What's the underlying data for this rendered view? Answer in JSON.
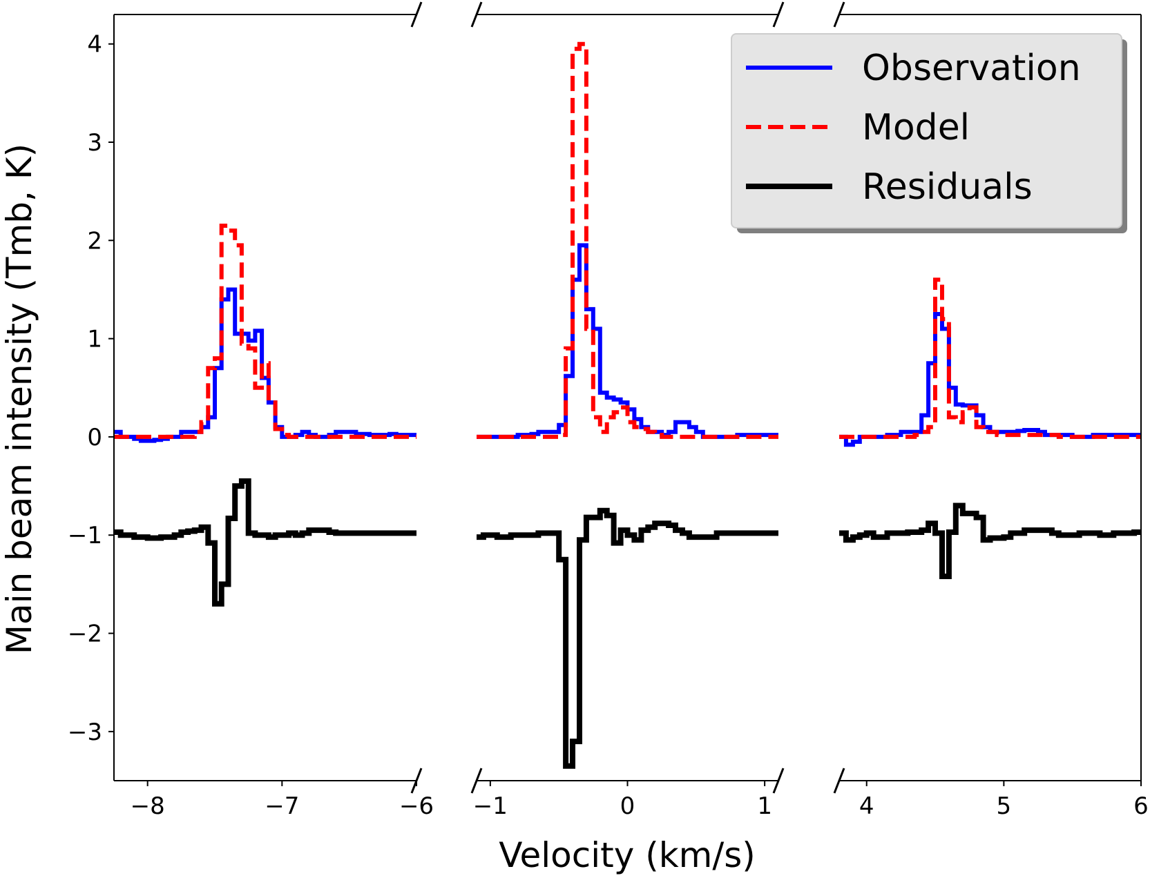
{
  "chart_data": {
    "type": "line",
    "title": "",
    "xlabel": "Velocity (km/s)",
    "ylabel": "Main beam intensity (Tmb, K)",
    "ylim": [
      -3.5,
      4.3
    ],
    "y_ticks": [
      4,
      3,
      2,
      1,
      0,
      -1,
      -2,
      -3
    ],
    "y_tick_labels": [
      "4",
      "3",
      "2",
      "1",
      "0",
      "−1",
      "−2",
      "−3"
    ],
    "panels": [
      {
        "xlim": [
          -8.25,
          -6.0
        ],
        "ticks": [
          -8,
          -7,
          -6
        ],
        "tick_labels": [
          "−8",
          "−7",
          "−6"
        ],
        "x": [
          -8.25,
          -8.2,
          -8.15,
          -8.1,
          -8.05,
          -8.0,
          -7.95,
          -7.9,
          -7.85,
          -7.8,
          -7.75,
          -7.7,
          -7.65,
          -7.6,
          -7.55,
          -7.5,
          -7.45,
          -7.4,
          -7.35,
          -7.3,
          -7.25,
          -7.2,
          -7.15,
          -7.1,
          -7.05,
          -7.0,
          -6.95,
          -6.9,
          -6.85,
          -6.8,
          -6.75,
          -6.7,
          -6.65,
          -6.6,
          -6.55,
          -6.5,
          -6.45,
          -6.4,
          -6.35,
          -6.3,
          -6.25,
          -6.2,
          -6.15,
          -6.1,
          -6.05
        ],
        "series": [
          {
            "name": "Observation",
            "color": "#0000ff",
            "values": [
              0.05,
              0.0,
              0.0,
              -0.02,
              -0.04,
              -0.04,
              -0.03,
              -0.02,
              0.0,
              0.0,
              0.05,
              0.05,
              0.05,
              0.1,
              0.2,
              0.7,
              1.4,
              1.5,
              1.05,
              1.05,
              0.98,
              1.08,
              0.6,
              0.35,
              0.1,
              0.0,
              0.0,
              0.02,
              0.05,
              0.02,
              0.0,
              0.0,
              0.02,
              0.05,
              0.05,
              0.05,
              0.03,
              0.03,
              0.02,
              0.02,
              0.02,
              0.03,
              0.02,
              0.02,
              0.02
            ]
          },
          {
            "name": "Model",
            "color": "#ff0000",
            "values": [
              0.0,
              0.0,
              0.0,
              0.0,
              0.0,
              0.0,
              0.0,
              0.0,
              0.0,
              0.0,
              0.0,
              0.0,
              0.05,
              0.15,
              0.7,
              0.8,
              2.15,
              2.1,
              1.95,
              0.95,
              0.9,
              0.5,
              0.75,
              0.35,
              0.08,
              0.02,
              0.0,
              0.0,
              0.0,
              0.0,
              0.0,
              0.0,
              0.0,
              0.0,
              0.0,
              0.0,
              0.0,
              0.0,
              0.0,
              0.0,
              0.0,
              0.0,
              0.0,
              0.0,
              0.0
            ]
          },
          {
            "name": "Residuals",
            "color": "#000000",
            "values": [
              -0.97,
              -1.0,
              -1.0,
              -1.02,
              -1.02,
              -1.03,
              -1.03,
              -1.02,
              -1.02,
              -1.0,
              -0.97,
              -0.96,
              -0.95,
              -0.92,
              -1.08,
              -1.7,
              -1.5,
              -0.83,
              -0.5,
              -0.45,
              -0.98,
              -1.0,
              -1.0,
              -1.02,
              -1.0,
              -1.0,
              -0.98,
              -1.0,
              -0.98,
              -0.95,
              -0.95,
              -0.95,
              -0.97,
              -0.98,
              -0.98,
              -0.98,
              -0.98,
              -0.98,
              -0.98,
              -0.98,
              -0.98,
              -0.98,
              -0.98,
              -0.98,
              -0.98
            ]
          }
        ]
      },
      {
        "xlim": [
          -1.1,
          1.1
        ],
        "ticks": [
          -1,
          0,
          1
        ],
        "tick_labels": [
          "−1",
          "0",
          "1"
        ],
        "x": [
          -1.1,
          -1.05,
          -1.0,
          -0.95,
          -0.9,
          -0.85,
          -0.8,
          -0.75,
          -0.7,
          -0.65,
          -0.6,
          -0.55,
          -0.5,
          -0.45,
          -0.4,
          -0.35,
          -0.3,
          -0.25,
          -0.2,
          -0.15,
          -0.1,
          -0.05,
          0.0,
          0.05,
          0.1,
          0.15,
          0.2,
          0.25,
          0.3,
          0.35,
          0.4,
          0.45,
          0.5,
          0.55,
          0.6,
          0.65,
          0.7,
          0.75,
          0.8,
          0.85,
          0.9,
          0.95,
          1.0,
          1.05
        ],
        "series": [
          {
            "name": "Observation",
            "color": "#0000ff",
            "values": [
              0.0,
              0.0,
              0.0,
              0.0,
              0.0,
              0.0,
              0.02,
              0.02,
              0.03,
              0.05,
              0.05,
              0.05,
              0.12,
              0.62,
              1.6,
              1.95,
              1.3,
              1.1,
              0.45,
              0.4,
              0.38,
              0.35,
              0.28,
              0.18,
              0.1,
              0.05,
              0.05,
              0.02,
              0.05,
              0.15,
              0.15,
              0.1,
              0.05,
              0.0,
              0.0,
              0.0,
              0.0,
              0.0,
              0.02,
              0.02,
              0.02,
              0.02,
              0.02,
              0.02
            ]
          },
          {
            "name": "Model",
            "color": "#ff0000",
            "values": [
              0.0,
              0.0,
              0.0,
              0.0,
              0.0,
              0.0,
              0.0,
              0.0,
              0.0,
              0.0,
              0.0,
              0.0,
              0.02,
              0.9,
              3.95,
              4.0,
              1.1,
              0.2,
              0.05,
              0.2,
              0.25,
              0.3,
              0.15,
              0.1,
              0.08,
              0.05,
              0.02,
              0.0,
              0.0,
              0.0,
              0.0,
              0.0,
              0.0,
              0.0,
              0.0,
              0.0,
              0.0,
              0.0,
              0.0,
              0.0,
              0.0,
              0.0,
              0.0,
              0.0
            ]
          },
          {
            "name": "Residuals",
            "color": "#000000",
            "values": [
              -1.02,
              -1.0,
              -1.0,
              -1.02,
              -1.02,
              -1.0,
              -1.0,
              -1.0,
              -1.0,
              -0.98,
              -0.98,
              -0.98,
              -1.25,
              -3.35,
              -3.1,
              -1.05,
              -0.82,
              -0.82,
              -0.75,
              -0.8,
              -1.08,
              -0.95,
              -1.0,
              -1.05,
              -0.95,
              -0.92,
              -0.88,
              -0.88,
              -0.9,
              -0.95,
              -0.98,
              -1.02,
              -1.02,
              -1.02,
              -1.02,
              -0.98,
              -0.98,
              -0.98,
              -0.98,
              -0.98,
              -0.98,
              -0.98,
              -0.98,
              -0.98
            ]
          }
        ]
      },
      {
        "xlim": [
          3.8,
          6.0
        ],
        "ticks": [
          4,
          5,
          6
        ],
        "tick_labels": [
          "4",
          "5",
          "6"
        ],
        "x": [
          3.8,
          3.85,
          3.9,
          3.95,
          4.0,
          4.05,
          4.1,
          4.15,
          4.2,
          4.25,
          4.3,
          4.35,
          4.4,
          4.45,
          4.5,
          4.55,
          4.6,
          4.65,
          4.7,
          4.75,
          4.8,
          4.85,
          4.9,
          4.95,
          5.0,
          5.05,
          5.1,
          5.15,
          5.2,
          5.25,
          5.3,
          5.35,
          5.4,
          5.45,
          5.5,
          5.55,
          5.6,
          5.65,
          5.7,
          5.75,
          5.8,
          5.85,
          5.9,
          5.95
        ],
        "series": [
          {
            "name": "Observation",
            "color": "#0000ff",
            "values": [
              0.0,
              -0.08,
              -0.05,
              0.0,
              0.0,
              0.0,
              0.0,
              0.02,
              0.02,
              0.05,
              0.05,
              0.05,
              0.22,
              0.75,
              1.25,
              1.1,
              0.5,
              0.33,
              0.32,
              0.32,
              0.22,
              0.1,
              0.05,
              0.05,
              0.05,
              0.05,
              0.06,
              0.07,
              0.07,
              0.05,
              0.02,
              0.02,
              0.02,
              0.02,
              0.0,
              0.0,
              0.0,
              0.02,
              0.02,
              0.02,
              0.02,
              0.02,
              0.02,
              0.02
            ]
          },
          {
            "name": "Model",
            "color": "#ff0000",
            "values": [
              0.0,
              0.0,
              0.0,
              0.0,
              0.0,
              0.0,
              0.0,
              0.0,
              0.0,
              0.0,
              0.0,
              0.02,
              0.05,
              0.1,
              1.6,
              1.2,
              0.2,
              0.15,
              0.25,
              0.3,
              0.1,
              0.05,
              0.05,
              0.02,
              0.02,
              0.02,
              0.02,
              0.02,
              0.02,
              0.02,
              0.02,
              0.02,
              0.0,
              0.0,
              0.0,
              0.0,
              0.0,
              0.0,
              0.0,
              0.0,
              0.0,
              0.0,
              0.0,
              0.0
            ]
          },
          {
            "name": "Residuals",
            "color": "#000000",
            "values": [
              -0.98,
              -1.05,
              -1.02,
              -1.0,
              -0.98,
              -1.02,
              -1.02,
              -0.98,
              -0.98,
              -0.98,
              -0.97,
              -0.97,
              -0.95,
              -0.88,
              -0.98,
              -1.42,
              -0.97,
              -0.7,
              -0.78,
              -0.78,
              -0.82,
              -1.05,
              -1.03,
              -1.03,
              -1.02,
              -0.98,
              -0.98,
              -0.95,
              -0.95,
              -0.95,
              -0.95,
              -0.98,
              -1.0,
              -1.0,
              -1.0,
              -0.98,
              -0.98,
              -0.98,
              -1.0,
              -1.0,
              -0.98,
              -0.98,
              -0.98,
              -0.97
            ]
          }
        ]
      }
    ],
    "legend": {
      "position": "top-right",
      "entries": [
        {
          "label": "Observation",
          "color": "#0000ff",
          "style": "solid"
        },
        {
          "label": "Model",
          "color": "#ff0000",
          "style": "dashed"
        },
        {
          "label": "Residuals",
          "color": "#000000",
          "style": "solid"
        }
      ]
    }
  }
}
